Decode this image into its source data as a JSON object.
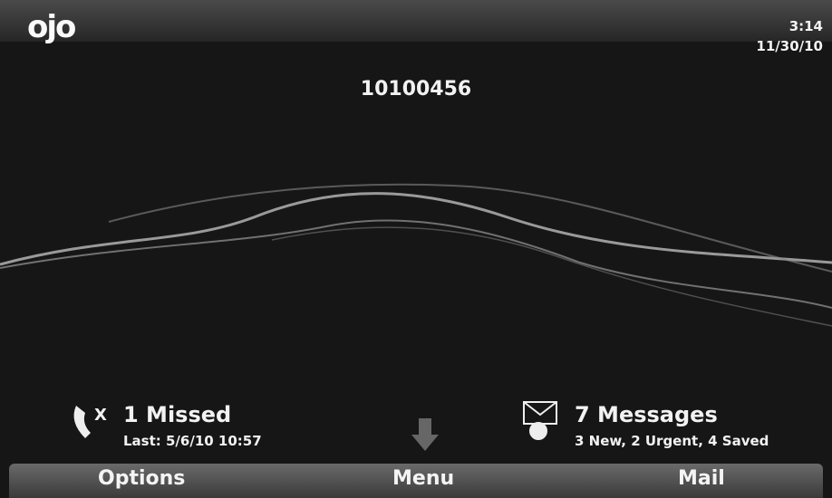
{
  "status_bar": {
    "logo": "ojo",
    "time": "3:14",
    "date": "11/30/10"
  },
  "phone_number": "10100456",
  "missed_calls": {
    "icon_mark": "X",
    "title": "1 Missed",
    "detail": "Last: 5/6/10 10:57"
  },
  "messages": {
    "title": "7 Messages",
    "detail": "3 New, 2 Urgent, 4 Saved"
  },
  "softkeys": [
    "Options",
    "Menu",
    "Mail"
  ]
}
